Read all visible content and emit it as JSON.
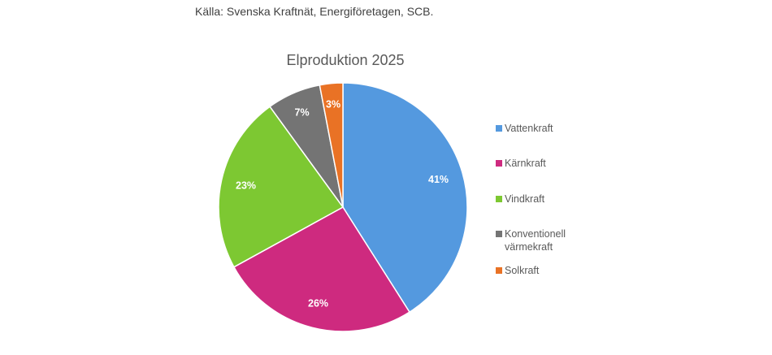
{
  "source_note": "Källa: Svenska Kraftnät, Energiföretagen, SCB.",
  "chart_data": {
    "type": "pie",
    "title": "Elproduktion 2025",
    "categories": [
      "Vattenkraft",
      "Kärnkraft",
      "Vindkraft",
      "Konventionell värmekraft",
      "Solkraft"
    ],
    "values": [
      41,
      26,
      23,
      7,
      3
    ],
    "data_labels": [
      "41%",
      "26%",
      "23%",
      "7%",
      "3%"
    ],
    "colors": [
      "#5499DF",
      "#CE2A7F",
      "#7DC832",
      "#747474",
      "#E97225"
    ],
    "legend_position": "right"
  },
  "legend": {
    "items": [
      {
        "label": "Vattenkraft"
      },
      {
        "label": "Kärnkraft"
      },
      {
        "label": "Vindkraft"
      },
      {
        "label": "Konventionell\nvärmekraft"
      },
      {
        "label": "Solkraft"
      }
    ]
  }
}
